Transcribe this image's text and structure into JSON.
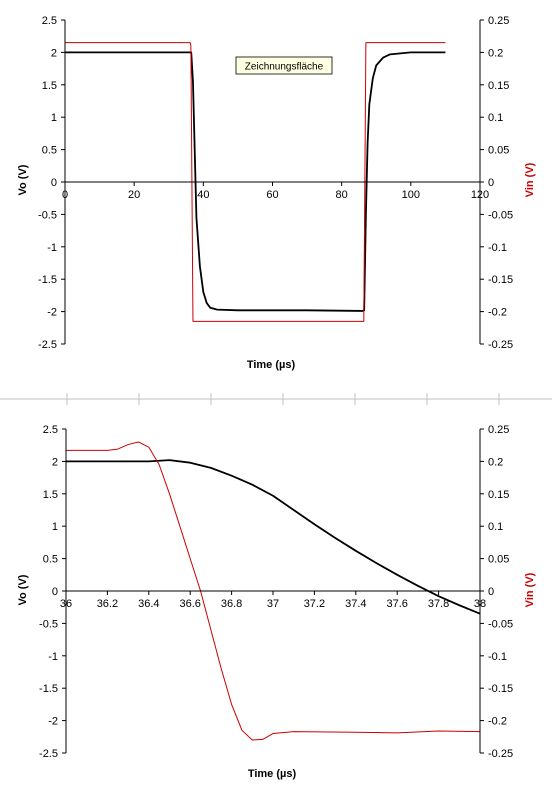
{
  "chart_data": [
    {
      "type": "line",
      "xlabel": "Time  (µs)",
      "ylabel": "Vo  (V)",
      "y2label": "Vin  (V)",
      "xlim": [
        0,
        120
      ],
      "ylim": [
        -2.5,
        2.5
      ],
      "y2lim": [
        -0.25,
        0.25
      ],
      "xticks": [
        "0",
        "20",
        "40",
        "60",
        "80",
        "100",
        "120"
      ],
      "yticks": [
        "2.5",
        "2",
        "1.5",
        "1",
        "0.5",
        "0",
        "-0.5",
        "-1",
        "-1.5",
        "-2",
        "-2.5"
      ],
      "y2ticks": [
        "0.25",
        "0.2",
        "0.15",
        "0.1",
        "0.05",
        "0",
        "-0.05",
        "-0.1",
        "-0.15",
        "-0.2",
        "-0.25"
      ],
      "tooltip": "Zeichnungsfläche",
      "grid": false,
      "series": [
        {
          "axis": "left",
          "color": "#000000",
          "points": [
            [
              0,
              2.0
            ],
            [
              36,
              2.0
            ],
            [
              36.5,
              2.0
            ],
            [
              37,
              1.55
            ],
            [
              37.5,
              0.5
            ],
            [
              38,
              -0.55
            ],
            [
              39,
              -1.3
            ],
            [
              40,
              -1.7
            ],
            [
              41,
              -1.87
            ],
            [
              42,
              -1.94
            ],
            [
              44,
              -1.97
            ],
            [
              50,
              -1.98
            ],
            [
              70,
              -1.98
            ],
            [
              86,
              -1.99
            ],
            [
              86.5,
              -1.98
            ],
            [
              87,
              -0.5
            ],
            [
              87.5,
              0.6
            ],
            [
              88,
              1.2
            ],
            [
              89,
              1.6
            ],
            [
              90,
              1.8
            ],
            [
              92,
              1.92
            ],
            [
              94,
              1.97
            ],
            [
              100,
              2.0
            ],
            [
              110,
              2.0
            ]
          ]
        },
        {
          "axis": "right",
          "color": "#cc0000",
          "points": [
            [
              0,
              0.215
            ],
            [
              36.2,
              0.215
            ],
            [
              36.4,
              0.21
            ],
            [
              37,
              -0.215
            ],
            [
              86.4,
              -0.215
            ],
            [
              87,
              0.215
            ],
            [
              110,
              0.215
            ]
          ]
        }
      ]
    },
    {
      "type": "line",
      "xlabel": "Time  (µs)",
      "ylabel": "Vo  (V)",
      "y2label": "Vin  (V)",
      "xlim": [
        36,
        38
      ],
      "ylim": [
        -2.5,
        2.5
      ],
      "y2lim": [
        -0.25,
        0.25
      ],
      "xticks": [
        "36",
        "36.2",
        "36.4",
        "36.6",
        "36.8",
        "37",
        "37.2",
        "37.4",
        "37.6",
        "37.8",
        "38"
      ],
      "yticks": [
        "2.5",
        "2",
        "1.5",
        "1",
        "0.5",
        "0",
        "-0.5",
        "-1",
        "-1.5",
        "-2",
        "-2.5"
      ],
      "y2ticks": [
        "0.25",
        "0.2",
        "0.15",
        "0.1",
        "0.05",
        "0",
        "-0.05",
        "-0.1",
        "-0.15",
        "-0.2",
        "-0.25"
      ],
      "grid": false,
      "series": [
        {
          "axis": "left",
          "color": "#000000",
          "points": [
            [
              36.0,
              2.0
            ],
            [
              36.2,
              2.0
            ],
            [
              36.4,
              2.0
            ],
            [
              36.5,
              2.02
            ],
            [
              36.6,
              1.98
            ],
            [
              36.7,
              1.9
            ],
            [
              36.8,
              1.78
            ],
            [
              36.9,
              1.64
            ],
            [
              37.0,
              1.47
            ],
            [
              37.1,
              1.25
            ],
            [
              37.2,
              1.03
            ],
            [
              37.3,
              0.82
            ],
            [
              37.4,
              0.62
            ],
            [
              37.5,
              0.43
            ],
            [
              37.6,
              0.25
            ],
            [
              37.7,
              0.08
            ],
            [
              37.8,
              -0.08
            ],
            [
              37.9,
              -0.22
            ],
            [
              38.0,
              -0.35
            ]
          ]
        },
        {
          "axis": "right",
          "color": "#cc0000",
          "points": [
            [
              36.0,
              0.217
            ],
            [
              36.1,
              0.217
            ],
            [
              36.2,
              0.217
            ],
            [
              36.25,
              0.219
            ],
            [
              36.3,
              0.226
            ],
            [
              36.35,
              0.23
            ],
            [
              36.4,
              0.222
            ],
            [
              36.45,
              0.195
            ],
            [
              36.5,
              0.15
            ],
            [
              36.55,
              0.1
            ],
            [
              36.6,
              0.05
            ],
            [
              36.65,
              0.0
            ],
            [
              36.7,
              -0.06
            ],
            [
              36.75,
              -0.12
            ],
            [
              36.8,
              -0.175
            ],
            [
              36.85,
              -0.215
            ],
            [
              36.9,
              -0.23
            ],
            [
              36.95,
              -0.229
            ],
            [
              37.0,
              -0.22
            ],
            [
              37.1,
              -0.217
            ],
            [
              37.4,
              -0.218
            ],
            [
              37.6,
              -0.219
            ],
            [
              37.8,
              -0.216
            ],
            [
              38.0,
              -0.217
            ]
          ]
        }
      ]
    }
  ]
}
